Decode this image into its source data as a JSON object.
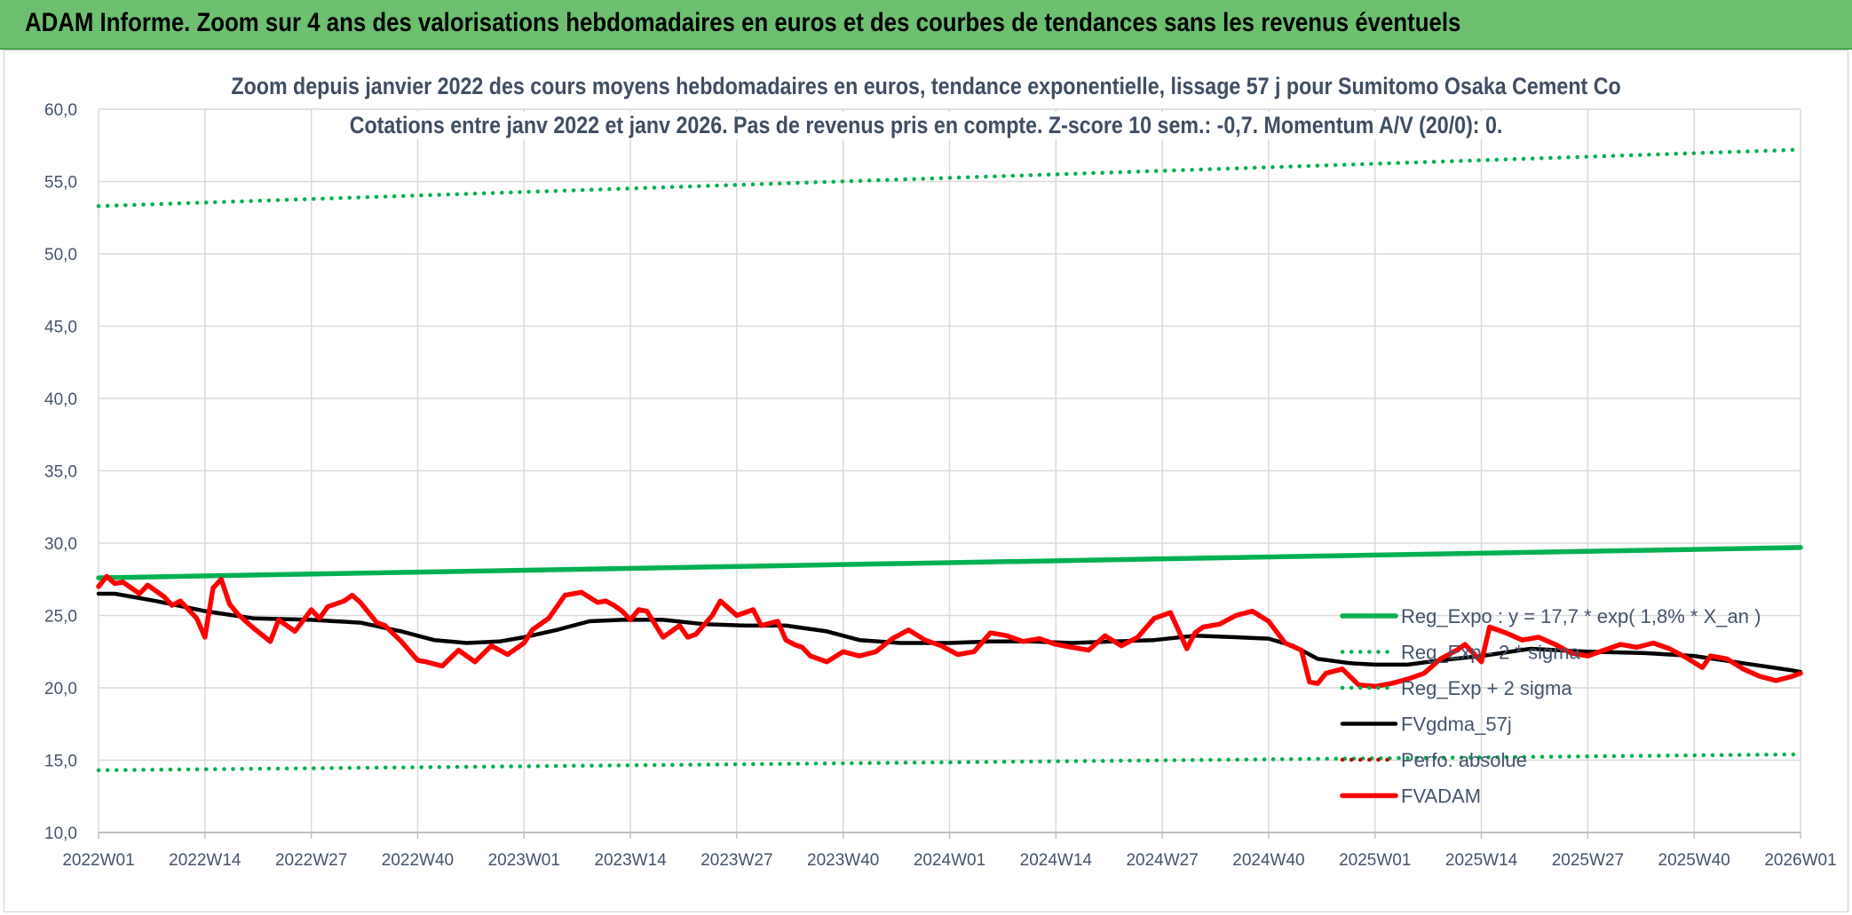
{
  "banner": {
    "text": "ADAM Informe. Zoom sur 4 ans des valorisations hebdomadaires en euros et des courbes de tendances sans les revenus éventuels",
    "color": "#6cc070"
  },
  "chart_data": {
    "type": "line",
    "title": "Zoom depuis janvier 2022 des cours moyens hebdomadaires en euros, tendance exponentielle, lissage 57 j pour Sumitomo Osaka Cement Co",
    "subtitle": "Cotations entre janv 2022 et janv 2026. Pas de revenus pris en compte. Z-score 10 sem.: -0,7. Momentum A/V (20/0): 0.",
    "xlabel": "",
    "ylabel": "",
    "ylim": [
      10,
      60
    ],
    "y_ticks": [
      "60,0",
      "55,0",
      "50,0",
      "45,0",
      "40,0",
      "35,0",
      "30,0",
      "25,0",
      "20,0",
      "15,0",
      "10,0"
    ],
    "x_ticks": [
      "2022W01",
      "2022W14",
      "2022W27",
      "2022W40",
      "2023W01",
      "2023W14",
      "2023W27",
      "2023W40",
      "2024W01",
      "2024W14",
      "2024W27",
      "2024W40",
      "2025W01",
      "2025W14",
      "2025W27",
      "2025W40",
      "2026W01"
    ],
    "grid": true,
    "legend_position": "right",
    "series": [
      {
        "name": "Reg_Expo : y = 17,7 * exp( 1,8% *  X_an )",
        "color": "#00b050",
        "style": "solid",
        "x": [
          "2022W01",
          "2026W01"
        ],
        "values": [
          27.6,
          29.7
        ]
      },
      {
        "name": "Reg_Exp - 2 * sigma",
        "color": "#00b050",
        "style": "dotted",
        "x": [
          "2022W01",
          "2026W01"
        ],
        "values": [
          14.3,
          15.4
        ]
      },
      {
        "name": "Reg_Exp + 2 sigma",
        "color": "#00b050",
        "style": "dotted",
        "x": [
          "2022W01",
          "2026W01"
        ],
        "values": [
          53.3,
          57.2
        ]
      },
      {
        "name": "FVgdma_57j",
        "color": "#000000",
        "style": "solid",
        "x": [
          "2022W01",
          "2022W03",
          "2022W08",
          "2022W14",
          "2022W20",
          "2022W27",
          "2022W33",
          "2022W38",
          "2022W42",
          "2022W46",
          "2022W50",
          "2023W01",
          "2023W05",
          "2023W09",
          "2023W13",
          "2023W18",
          "2023W23",
          "2023W28",
          "2023W33",
          "2023W38",
          "2023W42",
          "2023W47",
          "2024W01",
          "2024W06",
          "2024W11",
          "2024W16",
          "2024W21",
          "2024W26",
          "2024W31",
          "2024W36",
          "2024W40",
          "2024W43",
          "2024W46",
          "2024W50",
          "2025W01",
          "2025W05",
          "2025W09",
          "2025W14",
          "2025W20",
          "2025W27",
          "2025W34",
          "2025W40",
          "2025W46",
          "2025W52",
          "2026W01"
        ],
        "values": [
          26.5,
          26.5,
          26.0,
          25.3,
          24.8,
          24.7,
          24.5,
          23.9,
          23.3,
          23.1,
          23.2,
          23.5,
          24.0,
          24.6,
          24.7,
          24.7,
          24.4,
          24.3,
          24.3,
          23.9,
          23.3,
          23.1,
          23.1,
          23.2,
          23.2,
          23.1,
          23.2,
          23.3,
          23.6,
          23.5,
          23.4,
          22.9,
          22.0,
          21.7,
          21.6,
          21.6,
          21.9,
          22.2,
          22.7,
          22.5,
          22.4,
          22.2,
          21.7,
          21.2,
          21.1
        ]
      },
      {
        "name": "Perfo. absolue",
        "color": "#c00000",
        "style": "dotted",
        "x": [],
        "values": []
      },
      {
        "name": "FVADAM",
        "color": "#ff0000",
        "style": "solid",
        "x": [
          "2022W01",
          "2022W02",
          "2022W03",
          "2022W04",
          "2022W05",
          "2022W06",
          "2022W07",
          "2022W08",
          "2022W09",
          "2022W10",
          "2022W11",
          "2022W12",
          "2022W13",
          "2022W14",
          "2022W15",
          "2022W16",
          "2022W17",
          "2022W18",
          "2022W20",
          "2022W22",
          "2022W23",
          "2022W25",
          "2022W27",
          "2022W28",
          "2022W29",
          "2022W31",
          "2022W32",
          "2022W33",
          "2022W35",
          "2022W36",
          "2022W38",
          "2022W40",
          "2022W41",
          "2022W43",
          "2022W45",
          "2022W47",
          "2022W49",
          "2022W51",
          "2023W01",
          "2023W02",
          "2023W04",
          "2023W06",
          "2023W08",
          "2023W10",
          "2023W11",
          "2023W12",
          "2023W13",
          "2023W14",
          "2023W15",
          "2023W16",
          "2023W18",
          "2023W20",
          "2023W21",
          "2023W22",
          "2023W24",
          "2023W25",
          "2023W27",
          "2023W29",
          "2023W30",
          "2023W32",
          "2023W33",
          "2023W34",
          "2023W35",
          "2023W36",
          "2023W38",
          "2023W40",
          "2023W42",
          "2023W44",
          "2023W46",
          "2023W48",
          "2023W50",
          "2023W52",
          "2024W02",
          "2024W04",
          "2024W06",
          "2024W08",
          "2024W10",
          "2024W12",
          "2024W14",
          "2024W16",
          "2024W18",
          "2024W20",
          "2024W22",
          "2024W24",
          "2024W26",
          "2024W28",
          "2024W30",
          "2024W31",
          "2024W32",
          "2024W34",
          "2024W36",
          "2024W38",
          "2024W40",
          "2024W42",
          "2024W44",
          "2024W45",
          "2024W46",
          "2024W47",
          "2024W49",
          "2024W51",
          "2025W01",
          "2025W03",
          "2025W05",
          "2025W07",
          "2025W09",
          "2025W11",
          "2025W12",
          "2025W13",
          "2025W14",
          "2025W15",
          "2025W17",
          "2025W19",
          "2025W21",
          "2025W23",
          "2025W25",
          "2025W27",
          "2025W29",
          "2025W31",
          "2025W33",
          "2025W35",
          "2025W37",
          "2025W39",
          "2025W41",
          "2025W42",
          "2025W44",
          "2025W46",
          "2025W48",
          "2025W50",
          "2025W52",
          "2026W01"
        ],
        "values": [
          27.0,
          27.7,
          27.2,
          27.3,
          26.9,
          26.5,
          27.1,
          26.7,
          26.3,
          25.7,
          26.0,
          25.4,
          24.8,
          23.5,
          26.9,
          27.5,
          25.8,
          25.1,
          24.1,
          23.2,
          24.7,
          23.9,
          25.4,
          24.8,
          25.6,
          26.0,
          26.4,
          25.9,
          24.5,
          24.3,
          23.2,
          21.9,
          21.8,
          21.5,
          22.6,
          21.8,
          22.9,
          22.3,
          23.1,
          24.0,
          24.8,
          26.4,
          26.6,
          25.9,
          26.0,
          25.7,
          25.3,
          24.7,
          25.4,
          25.3,
          23.5,
          24.3,
          23.5,
          23.7,
          25.0,
          26.0,
          25.0,
          25.4,
          24.3,
          24.6,
          23.3,
          23.0,
          22.8,
          22.2,
          21.8,
          22.5,
          22.2,
          22.5,
          23.4,
          24.0,
          23.3,
          22.9,
          22.3,
          22.5,
          23.8,
          23.6,
          23.2,
          23.4,
          23.0,
          22.8,
          22.6,
          23.6,
          22.9,
          23.5,
          24.8,
          25.2,
          22.7,
          23.8,
          24.2,
          24.4,
          25.0,
          25.3,
          24.6,
          23.1,
          22.6,
          20.4,
          20.3,
          21.0,
          21.3,
          20.2,
          20.1,
          20.3,
          20.6,
          21.0,
          22.0,
          22.6,
          23.0,
          22.4,
          21.8,
          24.2,
          23.8,
          23.3,
          23.5,
          23.0,
          22.4,
          22.2,
          22.6,
          23.0,
          22.8,
          23.1,
          22.7,
          22.1,
          21.4,
          22.2,
          22.0,
          21.3,
          20.8,
          20.5,
          20.8,
          21.0
        ]
      }
    ]
  }
}
